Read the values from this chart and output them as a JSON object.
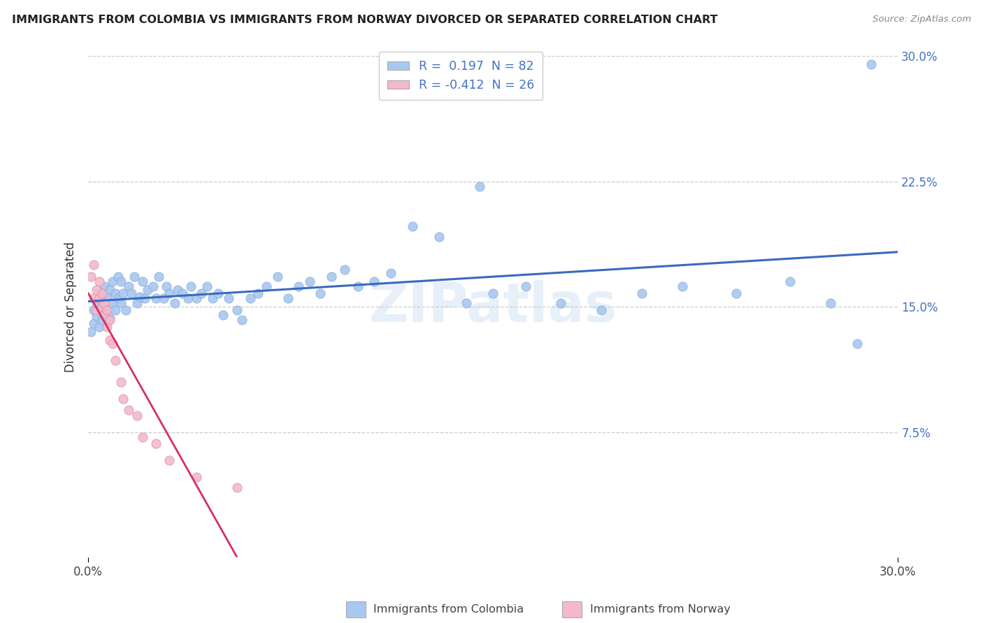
{
  "title": "IMMIGRANTS FROM COLOMBIA VS IMMIGRANTS FROM NORWAY DIVORCED OR SEPARATED CORRELATION CHART",
  "source": "Source: ZipAtlas.com",
  "ylabel": "Divorced or Separated",
  "xmin": 0.0,
  "xmax": 0.3,
  "ymin": 0.0,
  "ymax": 0.3,
  "yticks": [
    0.075,
    0.15,
    0.225,
    0.3
  ],
  "ytick_labels": [
    "7.5%",
    "15.0%",
    "22.5%",
    "30.0%"
  ],
  "colombia_color": "#a8c8f0",
  "colombia_edge": "#88aad8",
  "norway_color": "#f4b8cc",
  "norway_edge": "#d890a8",
  "colombia_line_color": "#3a6abf",
  "norway_line_color": "#d43060",
  "norway_line_dash_color": "#f0a0c0",
  "watermark": "ZIPatlas",
  "R_colombia": 0.197,
  "N_colombia": 82,
  "R_norway": -0.412,
  "N_norway": 26,
  "legend_labels": [
    "Immigrants from Colombia",
    "Immigrants from Norway"
  ],
  "grid_color": "#cccccc",
  "text_color": "#222222",
  "axis_label_color": "#4472c4",
  "colombia_x": [
    0.001,
    0.002,
    0.002,
    0.003,
    0.003,
    0.004,
    0.004,
    0.005,
    0.005,
    0.005,
    0.006,
    0.006,
    0.007,
    0.007,
    0.008,
    0.008,
    0.009,
    0.009,
    0.01,
    0.01,
    0.011,
    0.011,
    0.012,
    0.012,
    0.013,
    0.014,
    0.015,
    0.016,
    0.017,
    0.018,
    0.019,
    0.02,
    0.021,
    0.022,
    0.024,
    0.025,
    0.026,
    0.028,
    0.029,
    0.03,
    0.032,
    0.033,
    0.035,
    0.037,
    0.038,
    0.04,
    0.042,
    0.044,
    0.046,
    0.048,
    0.05,
    0.052,
    0.055,
    0.057,
    0.06,
    0.063,
    0.066,
    0.07,
    0.074,
    0.078,
    0.082,
    0.086,
    0.09,
    0.095,
    0.1,
    0.106,
    0.112,
    0.12,
    0.13,
    0.14,
    0.15,
    0.162,
    0.175,
    0.19,
    0.205,
    0.22,
    0.24,
    0.26,
    0.275,
    0.285,
    0.145,
    0.29
  ],
  "colombia_y": [
    0.135,
    0.14,
    0.148,
    0.144,
    0.152,
    0.138,
    0.155,
    0.142,
    0.15,
    0.158,
    0.145,
    0.162,
    0.148,
    0.156,
    0.143,
    0.16,
    0.152,
    0.165,
    0.148,
    0.158,
    0.155,
    0.168,
    0.152,
    0.165,
    0.158,
    0.148,
    0.162,
    0.158,
    0.168,
    0.152,
    0.156,
    0.165,
    0.155,
    0.16,
    0.162,
    0.155,
    0.168,
    0.155,
    0.162,
    0.158,
    0.152,
    0.16,
    0.158,
    0.155,
    0.162,
    0.155,
    0.158,
    0.162,
    0.155,
    0.158,
    0.145,
    0.155,
    0.148,
    0.142,
    0.155,
    0.158,
    0.162,
    0.168,
    0.155,
    0.162,
    0.165,
    0.158,
    0.168,
    0.172,
    0.162,
    0.165,
    0.17,
    0.198,
    0.192,
    0.152,
    0.158,
    0.162,
    0.152,
    0.148,
    0.158,
    0.162,
    0.158,
    0.165,
    0.152,
    0.128,
    0.222,
    0.295
  ],
  "norway_x": [
    0.001,
    0.002,
    0.002,
    0.003,
    0.003,
    0.004,
    0.004,
    0.005,
    0.005,
    0.006,
    0.006,
    0.007,
    0.007,
    0.008,
    0.008,
    0.009,
    0.01,
    0.012,
    0.013,
    0.015,
    0.018,
    0.02,
    0.025,
    0.03,
    0.04,
    0.055
  ],
  "norway_y": [
    0.168,
    0.175,
    0.155,
    0.16,
    0.148,
    0.155,
    0.165,
    0.15,
    0.158,
    0.145,
    0.152,
    0.148,
    0.138,
    0.142,
    0.13,
    0.128,
    0.118,
    0.105,
    0.095,
    0.088,
    0.085,
    0.072,
    0.068,
    0.058,
    0.048,
    0.042
  ]
}
